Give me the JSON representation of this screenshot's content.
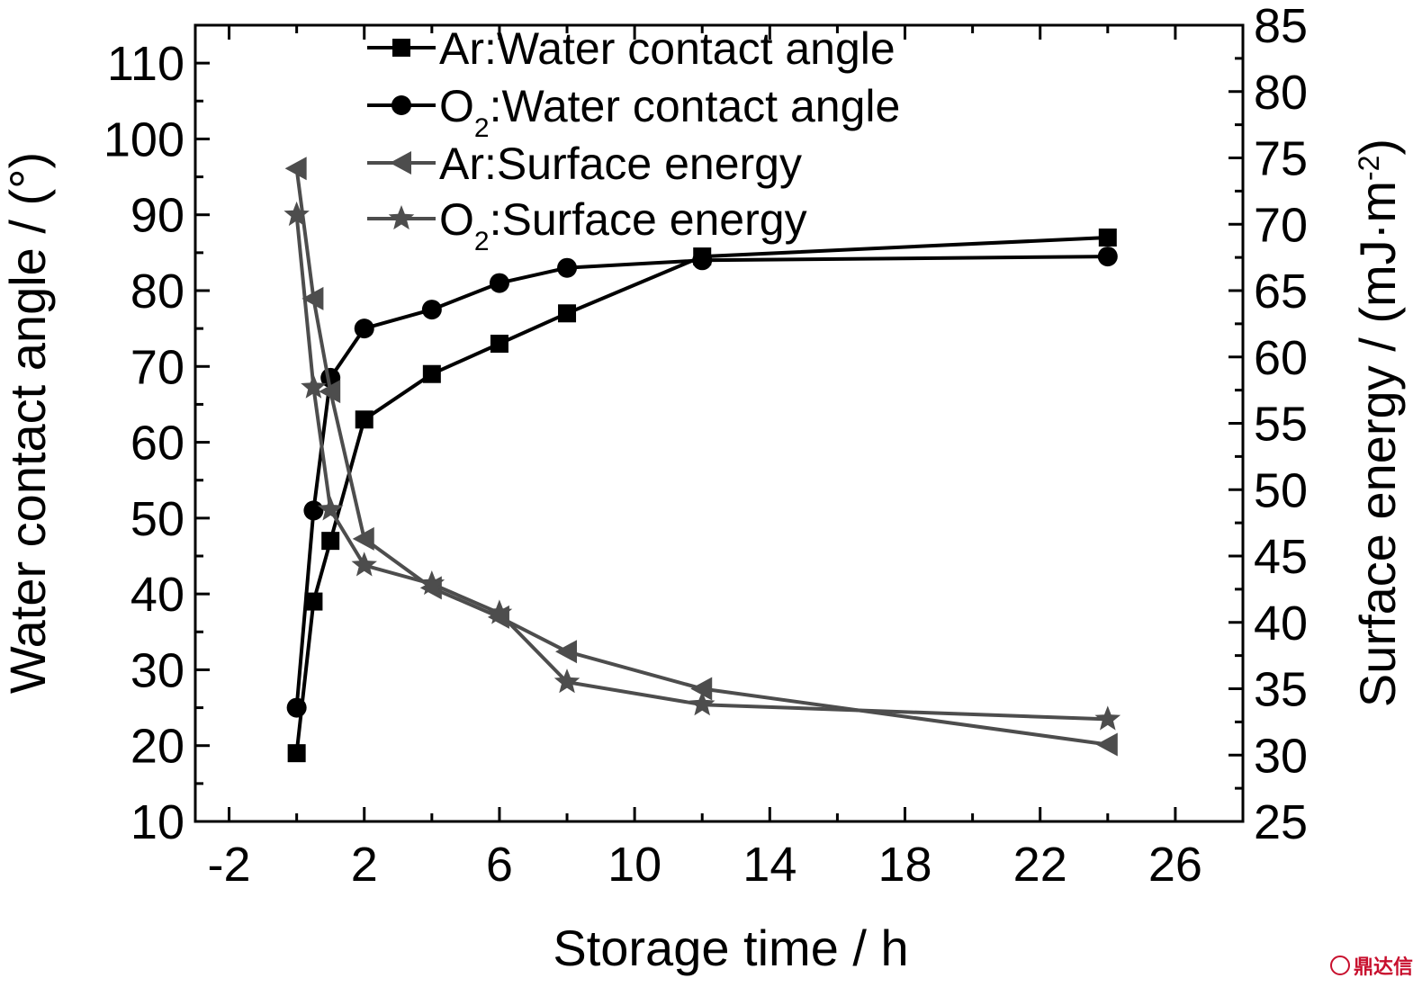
{
  "chart_data": {
    "type": "line",
    "xlabel": "Storage time / h",
    "ylabel_left": "Water contact angle / (°)",
    "ylabel_right": "Surface energy / (mJ·m",
    "ylabel_right_sup": "-2",
    "ylabel_right_end": ")",
    "xlim": [
      -3,
      28
    ],
    "ylim_left": [
      10,
      115
    ],
    "ylim_right": [
      25,
      85
    ],
    "x_ticks": [
      -2,
      2,
      6,
      10,
      14,
      18,
      22,
      26
    ],
    "y_left_ticks": [
      10,
      20,
      30,
      40,
      50,
      60,
      70,
      80,
      90,
      100,
      110
    ],
    "y_right_ticks": [
      25,
      30,
      35,
      40,
      45,
      50,
      55,
      60,
      65,
      70,
      75,
      80,
      85
    ],
    "legend_position": "top-center",
    "series": [
      {
        "name_prefix": "Ar",
        "name_sub": "",
        "name_suffix": "Water contact angle",
        "axis": "left",
        "marker": "square",
        "color": "#000000",
        "x": [
          0,
          0.5,
          1,
          2,
          4,
          6,
          8,
          12,
          24
        ],
        "y": [
          19,
          39,
          47,
          63,
          69,
          73,
          77,
          84.5,
          87
        ]
      },
      {
        "name_prefix": "O",
        "name_sub": "2",
        "name_suffix": "Water contact angle",
        "axis": "left",
        "marker": "circle",
        "color": "#000000",
        "x": [
          0,
          0.5,
          1,
          2,
          4,
          6,
          8,
          12,
          24
        ],
        "y": [
          25,
          51,
          68.5,
          75,
          77.5,
          81,
          83,
          84,
          84.5
        ]
      },
      {
        "name_prefix": "Ar",
        "name_sub": "",
        "name_suffix": "Surface energy",
        "axis": "right",
        "marker": "triangle-left",
        "color": "#4d4d4d",
        "x": [
          0,
          0.5,
          1,
          2,
          4,
          6,
          8,
          12,
          24
        ],
        "y": [
          74.2,
          64.4,
          57.4,
          46.3,
          42.6,
          40.4,
          37.8,
          35.0,
          30.8
        ]
      },
      {
        "name_prefix": "O",
        "name_sub": "2",
        "name_suffix": "Surface energy",
        "axis": "right",
        "marker": "star",
        "color": "#4d4d4d",
        "x": [
          0,
          0.5,
          1,
          2,
          4,
          6,
          8,
          12,
          24
        ],
        "y": [
          70.7,
          57.7,
          48.5,
          44.3,
          42.9,
          40.7,
          35.5,
          33.8,
          32.7
        ]
      }
    ]
  },
  "watermark": {
    "text": "鼎达信"
  }
}
